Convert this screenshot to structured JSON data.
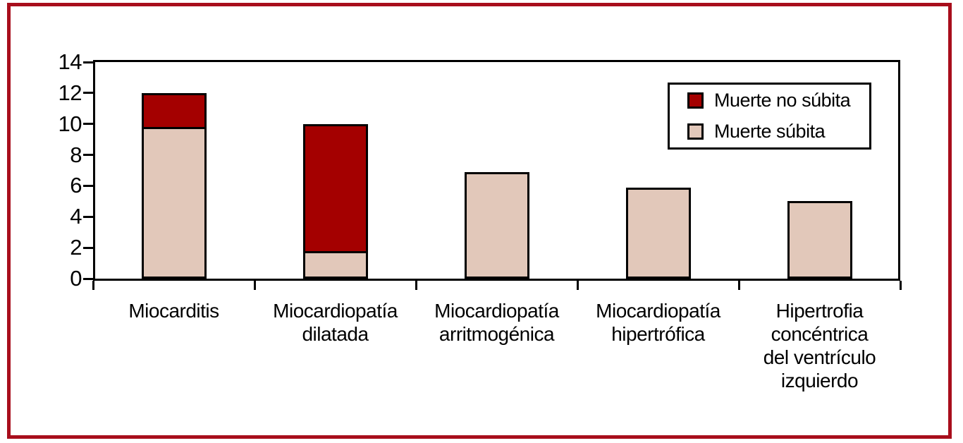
{
  "figure": {
    "background": "#ffffff",
    "frame_border_color": "#a80e1c",
    "axis_color": "#000000"
  },
  "chart_data": {
    "type": "bar",
    "stacked": true,
    "grid": false,
    "title": "",
    "xlabel": "",
    "ylabel": "",
    "ylim": [
      0,
      14
    ],
    "ytick_step": 2,
    "ytick_labels": [
      "0",
      "2",
      "4",
      "6",
      "8",
      "10",
      "12",
      "14"
    ],
    "categories": [
      "Miocarditis",
      "Miocardiopatía\ndilatada",
      "Miocardiopatía\narritmogénica",
      "Miocardiopatía\nhipertrófica",
      "Hipertrofia\nconcéntrica\ndel ventrículo\nizquierdo"
    ],
    "series": [
      {
        "name": "Muerte súbita",
        "color": "#e2c8ba",
        "values": [
          9.8,
          1.8,
          6.9,
          5.9,
          5.0
        ]
      },
      {
        "name": "Muerte no súbita",
        "color": "#a40000",
        "values": [
          2.2,
          8.2,
          0,
          0,
          0
        ]
      }
    ],
    "totals": [
      12,
      10,
      6.9,
      5.9,
      5.0
    ],
    "legend": {
      "position": "top-right",
      "entries": [
        {
          "label": "Muerte no súbita",
          "color": "#a40000"
        },
        {
          "label": "Muerte súbita",
          "color": "#e2c8ba"
        }
      ]
    }
  }
}
